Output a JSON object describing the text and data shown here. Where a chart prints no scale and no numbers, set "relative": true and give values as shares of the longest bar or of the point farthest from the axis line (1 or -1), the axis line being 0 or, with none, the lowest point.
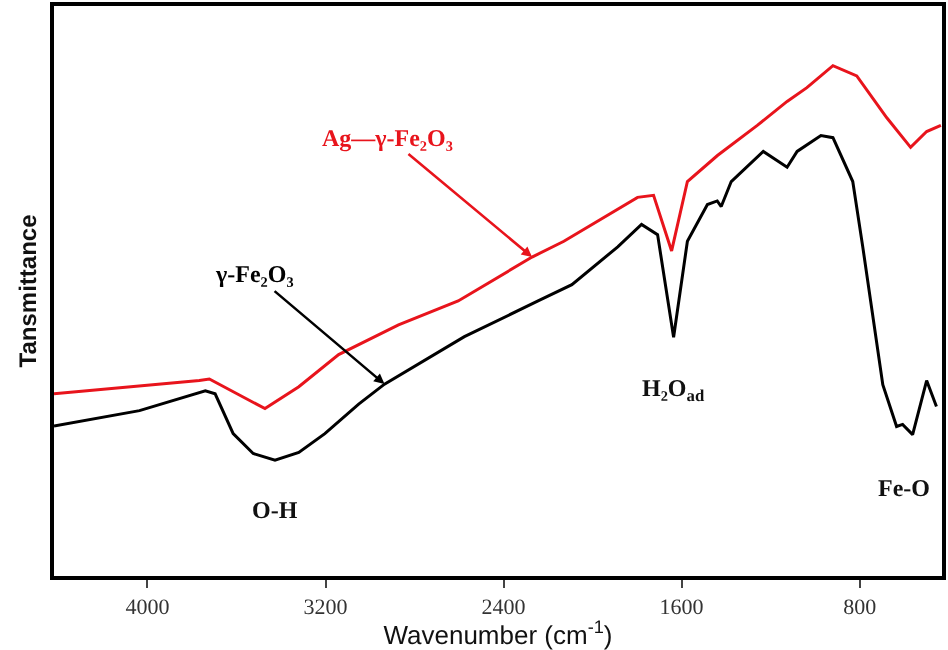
{
  "chart_data": {
    "type": "line",
    "relative": true,
    "xlabel": "Wavenumber (cm$^{-1}$)",
    "ylabel": "Tansmittance",
    "xlim": [
      4420,
      430
    ],
    "xticks": [
      4000,
      3200,
      2400,
      1600,
      800
    ],
    "tick_labels": "x",
    "grid": false,
    "marker": "none",
    "line_style": "solid",
    "series": [
      {
        "color": "#e8141c",
        "x": [
          4420,
          3767,
          3722,
          3472,
          3320,
          3141,
          2872,
          2604,
          2272,
          2129,
          1798,
          1726,
          1645,
          1574,
          1439,
          1260,
          1126,
          1037,
          920,
          813,
          678,
          571,
          499,
          435
        ],
        "values": [
          0.357,
          0.383,
          0.386,
          0.328,
          0.371,
          0.434,
          0.492,
          0.539,
          0.625,
          0.656,
          0.742,
          0.746,
          0.637,
          0.773,
          0.824,
          0.883,
          0.93,
          0.957,
          1.0,
          0.98,
          0.898,
          0.84,
          0.871,
          0.883
        ]
      },
      {
        "color": "#000000",
        "x": [
          4420,
          4036,
          3740,
          3696,
          3615,
          3525,
          3427,
          3320,
          3203,
          3051,
          2935,
          2576,
          2245,
          2093,
          1887,
          1780,
          1708,
          1636,
          1574,
          1484,
          1440,
          1422,
          1377,
          1233,
          1126,
          1081,
          974,
          920,
          831,
          786,
          696,
          634,
          607,
          562,
          499,
          455
        ],
        "values": [
          0.294,
          0.324,
          0.363,
          0.357,
          0.279,
          0.24,
          0.227,
          0.242,
          0.279,
          0.337,
          0.376,
          0.469,
          0.539,
          0.571,
          0.645,
          0.689,
          0.669,
          0.468,
          0.656,
          0.728,
          0.735,
          0.724,
          0.773,
          0.832,
          0.801,
          0.832,
          0.863,
          0.859,
          0.773,
          0.645,
          0.375,
          0.293,
          0.297,
          0.277,
          0.383,
          0.332
        ]
      }
    ],
    "annotations": [
      {
        "text": "Ag—γ-Fe₂O₃",
        "x": 2272,
        "y": 0.625
      },
      {
        "text": "γ-Fe₂O₃",
        "x": 2935,
        "y": 0.376
      },
      {
        "text": "O-H",
        "x": 3427,
        "y": 0.227
      },
      {
        "text": "H₂O$_{ad}$",
        "x": 1636,
        "y": 0.468
      },
      {
        "text": "Fe-O",
        "x": 600,
        "y": 0.277
      }
    ]
  }
}
